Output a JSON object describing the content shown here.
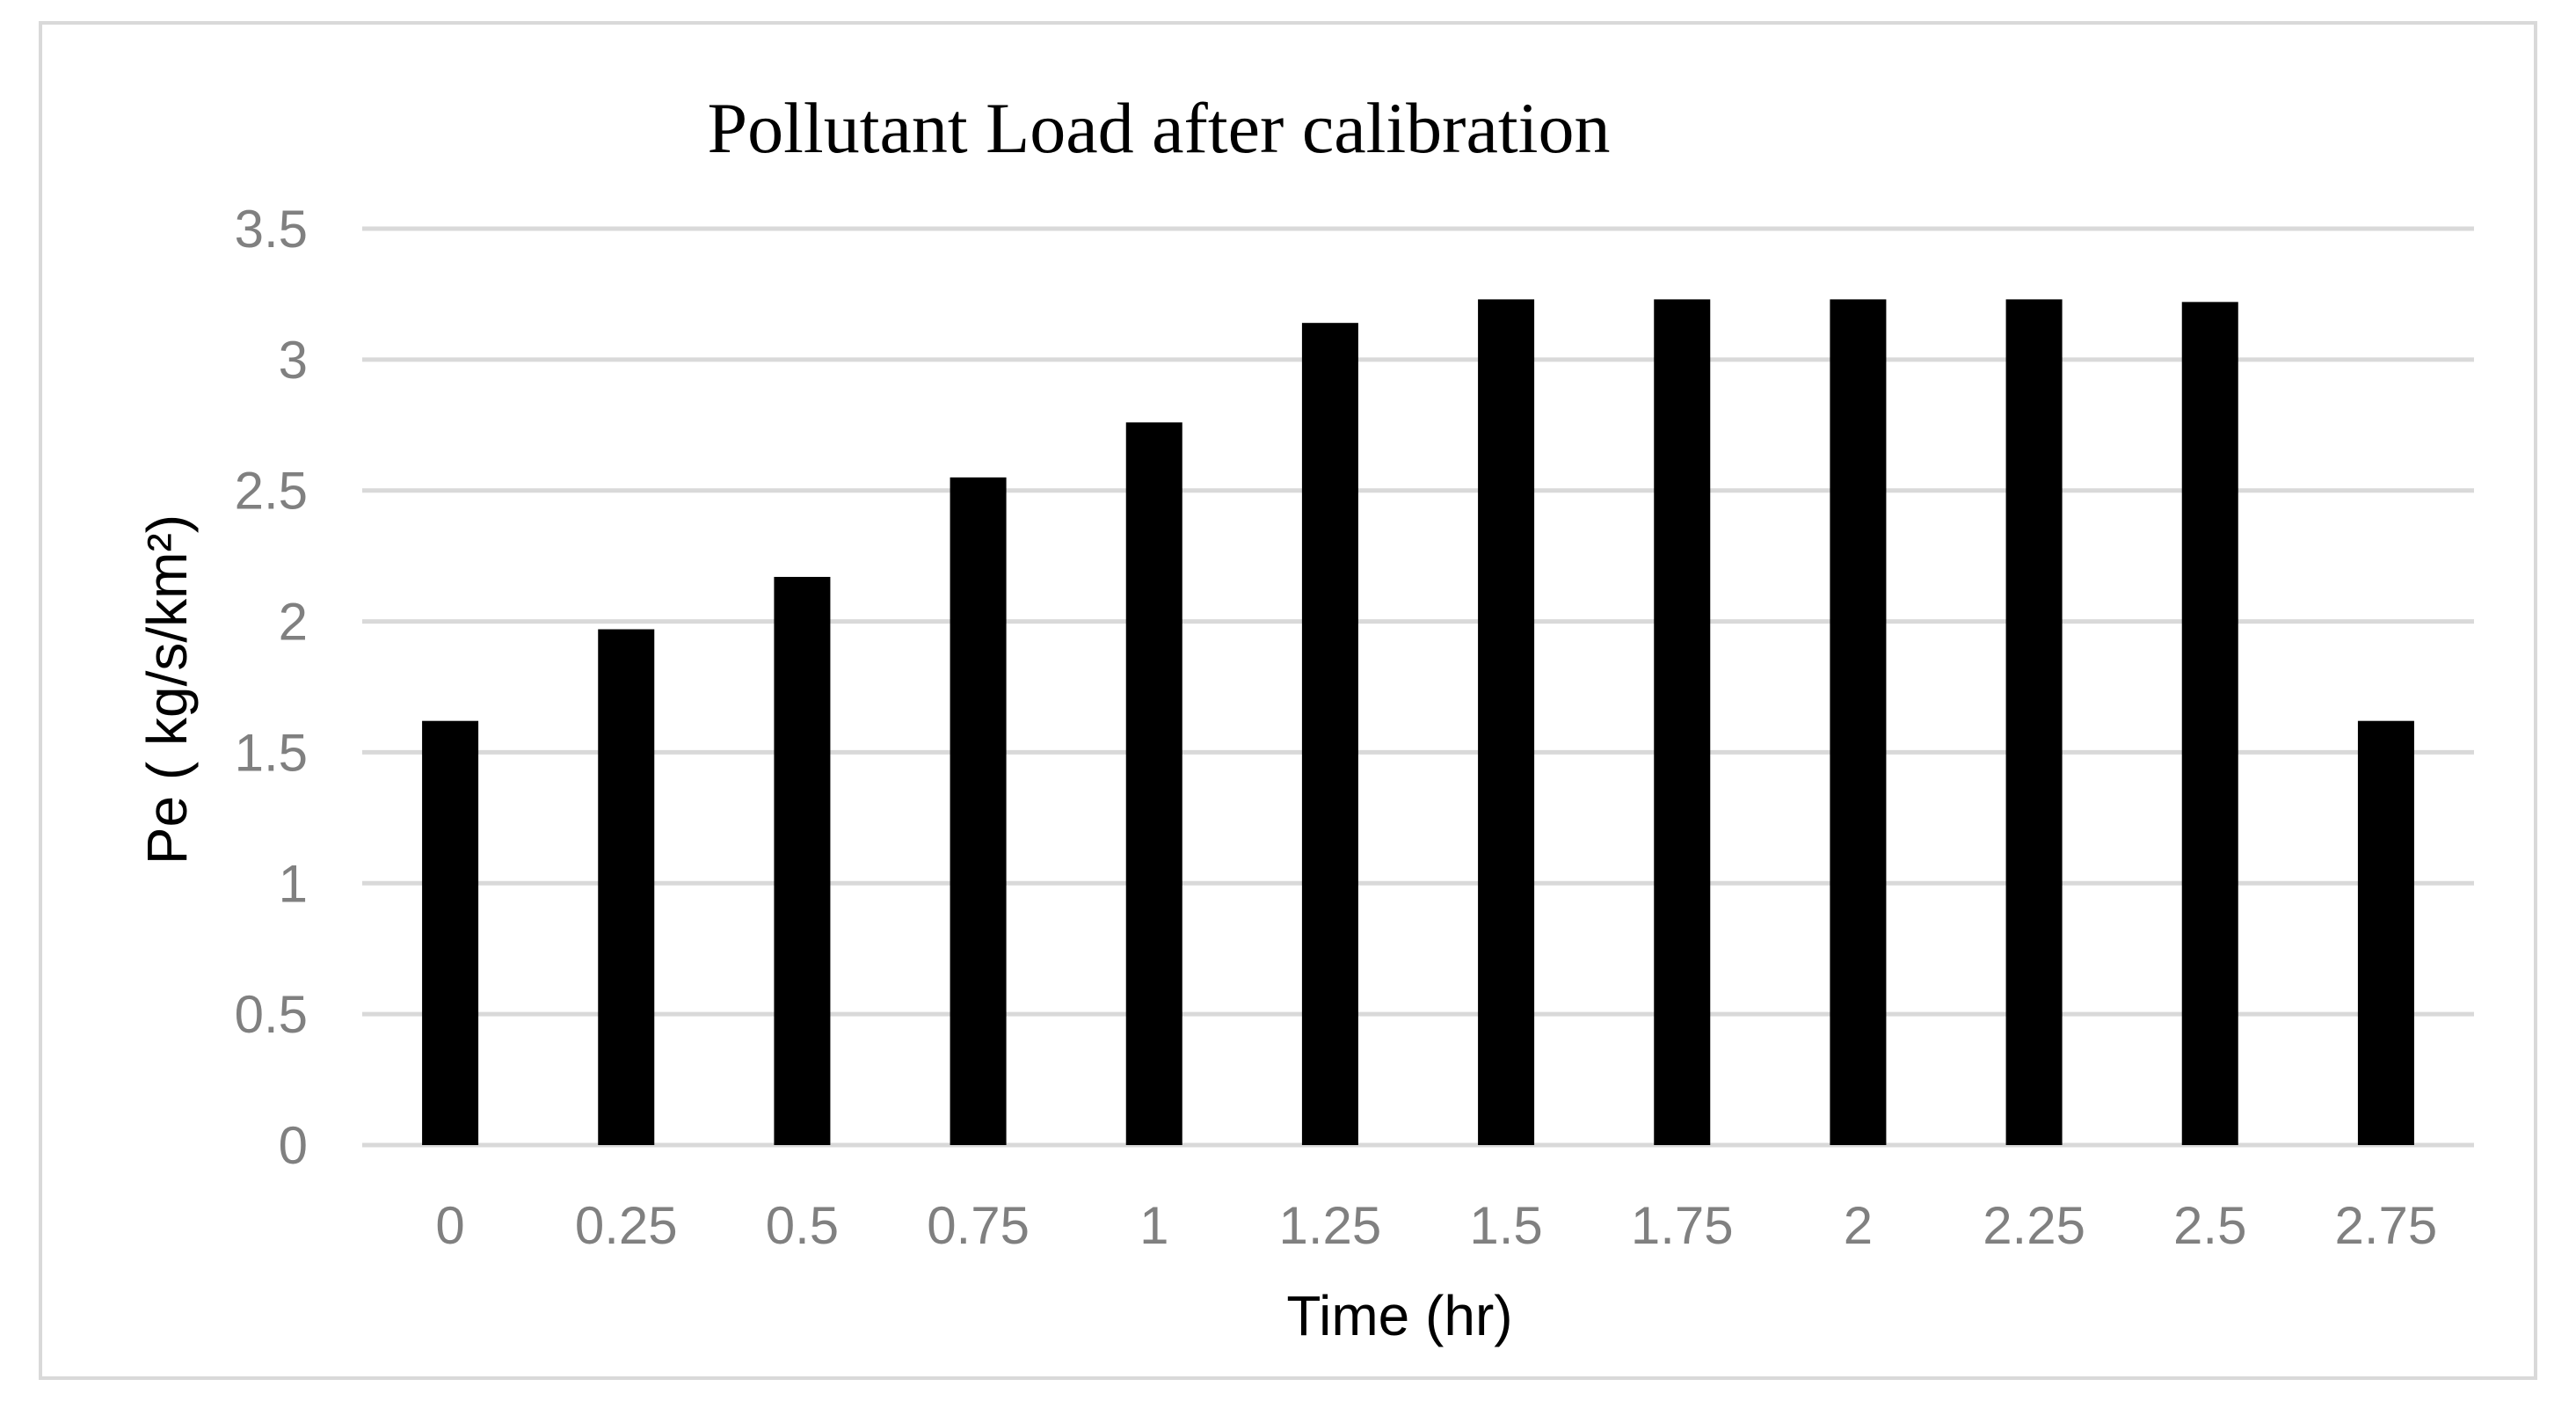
{
  "chart_data": {
    "type": "bar",
    "title": "Pollutant Load after calibration",
    "xlabel": "Time (hr)",
    "ylabel": "Pe ( kg/s/km²)",
    "categories": [
      "0",
      "0.25",
      "0.5",
      "0.75",
      "1",
      "1.25",
      "1.5",
      "1.75",
      "2",
      "2.25",
      "2.5",
      "2.75"
    ],
    "values": [
      1.62,
      1.97,
      2.17,
      2.55,
      2.76,
      3.14,
      3.23,
      3.23,
      3.23,
      3.23,
      3.22,
      1.62
    ],
    "ylim": [
      0,
      3.5
    ],
    "yticks": [
      "0",
      "0.5",
      "1",
      "1.5",
      "2",
      "2.5",
      "3",
      "3.5"
    ],
    "grid": "horizontal",
    "legend": "none",
    "bar_color": "#000000",
    "grid_color": "#d9d9d9"
  }
}
